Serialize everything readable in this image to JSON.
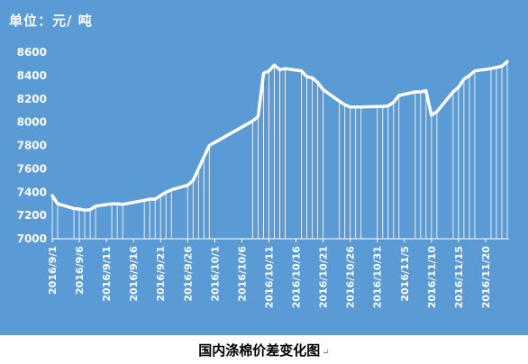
{
  "chart_data": {
    "type": "line",
    "title": "",
    "ylabel": "单位：元/ 吨",
    "xlabel": "",
    "ylim": [
      7000,
      8600
    ],
    "yticks": [
      7000,
      7200,
      7400,
      7600,
      7800,
      8000,
      8200,
      8400,
      8600
    ],
    "x_tick_labels": [
      "2016/9/1",
      "2016/9/6",
      "2016/9/11",
      "2016/9/16",
      "2016/9/21",
      "2016/9/26",
      "2016/10/1",
      "2016/10/6",
      "2016/10/11",
      "2016/10/16",
      "2016/10/21",
      "2016/10/26",
      "2016/10/31",
      "2016/11/5",
      "2016/11/10",
      "2016/11/15",
      "2016/11/20"
    ],
    "grid": false,
    "drop_lines": true,
    "x": [
      "2016/9/1",
      "2016/9/2",
      "2016/9/5",
      "2016/9/6",
      "2016/9/7",
      "2016/9/8",
      "2016/9/9",
      "2016/9/12",
      "2016/9/13",
      "2016/9/14",
      "2016/9/18",
      "2016/9/19",
      "2016/9/20",
      "2016/9/21",
      "2016/9/22",
      "2016/9/23",
      "2016/9/26",
      "2016/9/27",
      "2016/9/28",
      "2016/9/29",
      "2016/9/30",
      "2016/10/8",
      "2016/10/9",
      "2016/10/10",
      "2016/10/11",
      "2016/10/12",
      "2016/10/13",
      "2016/10/14",
      "2016/10/17",
      "2016/10/18",
      "2016/10/19",
      "2016/10/20",
      "2016/10/21",
      "2016/10/24",
      "2016/10/25",
      "2016/10/26",
      "2016/10/27",
      "2016/10/28",
      "2016/10/31",
      "2016/11/1",
      "2016/11/2",
      "2016/11/3",
      "2016/11/4",
      "2016/11/7",
      "2016/11/8",
      "2016/11/9",
      "2016/11/10",
      "2016/11/11",
      "2016/11/14",
      "2016/11/15",
      "2016/11/16",
      "2016/11/17",
      "2016/11/18",
      "2016/11/21",
      "2016/11/22",
      "2016/11/23",
      "2016/11/24"
    ],
    "series": [
      {
        "name": "",
        "color": "#ffffff",
        "values": [
          7370,
          7300,
          7260,
          7255,
          7245,
          7250,
          7280,
          7300,
          7300,
          7295,
          7330,
          7340,
          7340,
          7370,
          7400,
          7420,
          7460,
          7500,
          7600,
          7700,
          7800,
          8010,
          8050,
          8420,
          8440,
          8490,
          8450,
          8460,
          8440,
          8390,
          8380,
          8340,
          8280,
          8180,
          8150,
          8130,
          8130,
          8130,
          8135,
          8135,
          8140,
          8170,
          8230,
          8260,
          8260,
          8270,
          8060,
          8090,
          8260,
          8300,
          8370,
          8400,
          8440,
          8460,
          8470,
          8480,
          8520
        ]
      }
    ]
  },
  "caption": "国内涤棉价差变化图",
  "caption_mark": "↵",
  "colors": {
    "background": "#5b9bd5",
    "line": "#ffffff",
    "drop_line": "#e4eef8",
    "axis": "#ffffff"
  }
}
